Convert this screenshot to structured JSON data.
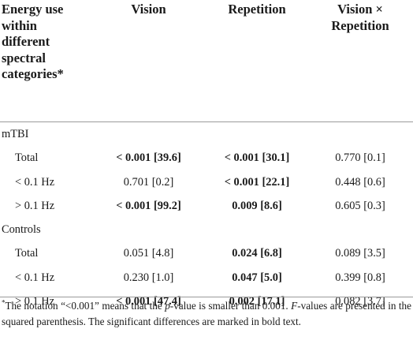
{
  "header": {
    "col0_lines": [
      "Energy use",
      "within",
      "different",
      "spectral",
      "categories*"
    ],
    "col1": "Vision",
    "col2": "Repetition",
    "col3_lines": [
      "Vision ×",
      "Repetition"
    ]
  },
  "groups": [
    {
      "label": "mTBI",
      "rows": [
        {
          "label": "Total",
          "cells": [
            {
              "p": "< 0.001",
              "f": "[39.6]",
              "bold": true
            },
            {
              "p": "< 0.001",
              "f": "[30.1]",
              "bold": true
            },
            {
              "p": "0.770",
              "f": "[0.1]",
              "bold": false
            }
          ]
        },
        {
          "label": "< 0.1 Hz",
          "cells": [
            {
              "p": "0.701",
              "f": "[0.2]",
              "bold": false
            },
            {
              "p": "< 0.001",
              "f": "[22.1]",
              "bold": true
            },
            {
              "p": "0.448",
              "f": "[0.6]",
              "bold": false
            }
          ]
        },
        {
          "label": "> 0.1 Hz",
          "cells": [
            {
              "p": "< 0.001",
              "f": "[99.2]",
              "bold": true
            },
            {
              "p": "0.009",
              "f": "[8.6]",
              "bold": true
            },
            {
              "p": "0.605",
              "f": "[0.3]",
              "bold": false
            }
          ]
        }
      ]
    },
    {
      "label": "Controls",
      "rows": [
        {
          "label": "Total",
          "cells": [
            {
              "p": "0.051",
              "f": "[4.8]",
              "bold": false
            },
            {
              "p": "0.024",
              "f": "[6.8]",
              "bold": true
            },
            {
              "p": "0.089",
              "f": "[3.5]",
              "bold": false
            }
          ]
        },
        {
          "label": "< 0.1 Hz",
          "cells": [
            {
              "p": "0.230",
              "f": "[1.0]",
              "bold": false
            },
            {
              "p": "0.047",
              "f": "[5.0]",
              "bold": true
            },
            {
              "p": "0.399",
              "f": "[0.8]",
              "bold": false
            }
          ]
        },
        {
          "label": "> 0.1 Hz",
          "cells": [
            {
              "p": "< 0.001",
              "f": "[47.4]",
              "bold": true
            },
            {
              "p": "0.002",
              "f": "[17.1]",
              "bold": true
            },
            {
              "p": "0.082",
              "f": "[3.7]",
              "bold": false
            }
          ]
        }
      ]
    }
  ],
  "footnote": {
    "mark": "*",
    "text_a": "The notation “<0.001” means that the ",
    "text_italic_p": "p",
    "text_b": "-value is smaller than 0.001. ",
    "text_italic_f": "F",
    "text_c": "-values are presented in the squared parenthesis. The significant differences are marked in bold text."
  }
}
